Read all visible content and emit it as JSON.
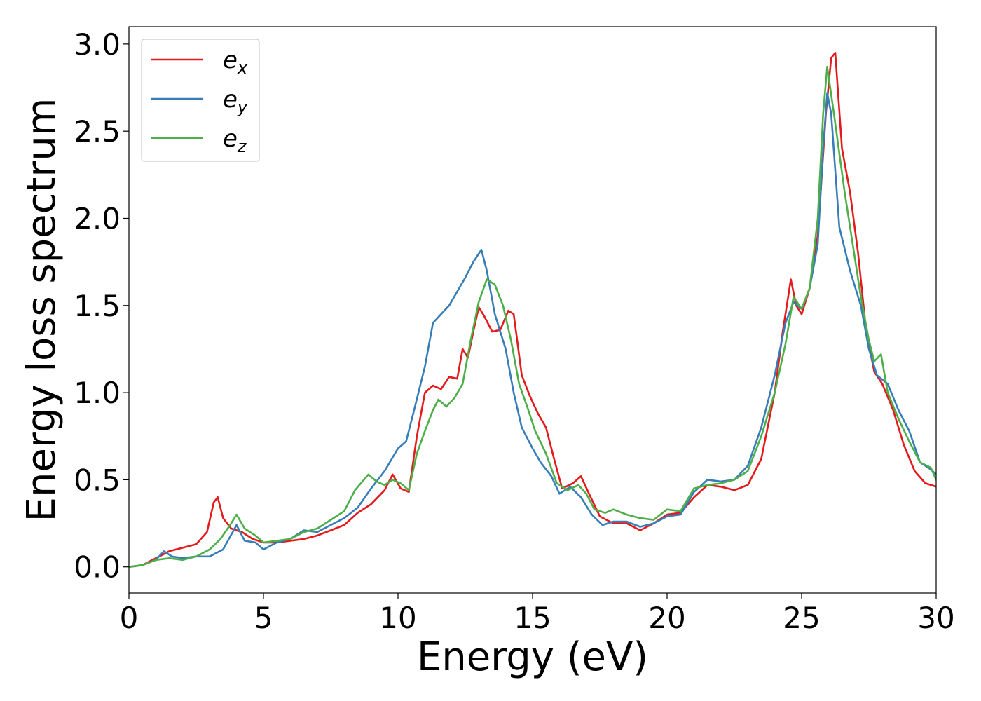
{
  "chart_data": {
    "type": "line",
    "title": "",
    "xlabel": "Energy (eV)",
    "ylabel": "Energy loss spectrum",
    "xlim": [
      0,
      30
    ],
    "ylim": [
      -0.15,
      3.1
    ],
    "xticks": [
      0,
      5,
      10,
      15,
      20,
      25,
      30
    ],
    "yticks": [
      0.0,
      0.5,
      1.0,
      1.5,
      2.0,
      2.5,
      3.0
    ],
    "xtick_labels": [
      "0",
      "5",
      "10",
      "15",
      "20",
      "25",
      "30"
    ],
    "ytick_labels": [
      "0.0",
      "0.5",
      "1.0",
      "1.5",
      "2.0",
      "2.5",
      "3.0"
    ],
    "grid": false,
    "legend_position": "upper-left",
    "series": [
      {
        "name": "e_x",
        "legend_base": "e",
        "legend_sub": "x",
        "color": "#e41a1c",
        "points": [
          [
            0,
            0
          ],
          [
            0.5,
            0.01
          ],
          [
            1.0,
            0.05
          ],
          [
            1.5,
            0.09
          ],
          [
            2.0,
            0.11
          ],
          [
            2.5,
            0.13
          ],
          [
            2.9,
            0.2
          ],
          [
            3.15,
            0.37
          ],
          [
            3.3,
            0.4
          ],
          [
            3.5,
            0.28
          ],
          [
            3.8,
            0.22
          ],
          [
            4.2,
            0.2
          ],
          [
            4.6,
            0.16
          ],
          [
            5.0,
            0.14
          ],
          [
            5.5,
            0.14
          ],
          [
            6.0,
            0.15
          ],
          [
            6.5,
            0.16
          ],
          [
            7.0,
            0.18
          ],
          [
            7.5,
            0.21
          ],
          [
            8.0,
            0.24
          ],
          [
            8.5,
            0.31
          ],
          [
            9.0,
            0.36
          ],
          [
            9.5,
            0.44
          ],
          [
            9.8,
            0.53
          ],
          [
            10.1,
            0.45
          ],
          [
            10.4,
            0.43
          ],
          [
            10.7,
            0.75
          ],
          [
            11.0,
            1.0
          ],
          [
            11.3,
            1.04
          ],
          [
            11.6,
            1.02
          ],
          [
            11.9,
            1.09
          ],
          [
            12.2,
            1.08
          ],
          [
            12.4,
            1.25
          ],
          [
            12.6,
            1.2
          ],
          [
            12.8,
            1.35
          ],
          [
            13.0,
            1.49
          ],
          [
            13.2,
            1.44
          ],
          [
            13.5,
            1.35
          ],
          [
            13.8,
            1.36
          ],
          [
            14.1,
            1.47
          ],
          [
            14.3,
            1.45
          ],
          [
            14.6,
            1.1
          ],
          [
            14.9,
            0.98
          ],
          [
            15.2,
            0.88
          ],
          [
            15.5,
            0.8
          ],
          [
            15.8,
            0.62
          ],
          [
            16.1,
            0.45
          ],
          [
            16.5,
            0.48
          ],
          [
            16.8,
            0.52
          ],
          [
            17.1,
            0.42
          ],
          [
            17.5,
            0.29
          ],
          [
            18.0,
            0.25
          ],
          [
            18.5,
            0.25
          ],
          [
            19.0,
            0.21
          ],
          [
            19.5,
            0.25
          ],
          [
            20.0,
            0.3
          ],
          [
            20.5,
            0.31
          ],
          [
            21.0,
            0.4
          ],
          [
            21.5,
            0.47
          ],
          [
            22.0,
            0.46
          ],
          [
            22.5,
            0.44
          ],
          [
            23.0,
            0.47
          ],
          [
            23.5,
            0.62
          ],
          [
            24.0,
            1.0
          ],
          [
            24.3,
            1.35
          ],
          [
            24.6,
            1.65
          ],
          [
            24.8,
            1.5
          ],
          [
            25.0,
            1.45
          ],
          [
            25.3,
            1.6
          ],
          [
            25.6,
            1.9
          ],
          [
            25.9,
            2.6
          ],
          [
            26.1,
            2.92
          ],
          [
            26.25,
            2.95
          ],
          [
            26.5,
            2.4
          ],
          [
            26.8,
            2.15
          ],
          [
            27.1,
            1.8
          ],
          [
            27.4,
            1.35
          ],
          [
            27.7,
            1.12
          ],
          [
            28.0,
            1.05
          ],
          [
            28.4,
            0.9
          ],
          [
            28.8,
            0.7
          ],
          [
            29.2,
            0.55
          ],
          [
            29.6,
            0.48
          ],
          [
            30.0,
            0.46
          ]
        ]
      },
      {
        "name": "e_y",
        "legend_base": "e",
        "legend_sub": "y",
        "color": "#377eb8",
        "points": [
          [
            0,
            0
          ],
          [
            0.5,
            0.01
          ],
          [
            1.0,
            0.04
          ],
          [
            1.3,
            0.09
          ],
          [
            1.6,
            0.06
          ],
          [
            2.0,
            0.05
          ],
          [
            2.5,
            0.06
          ],
          [
            3.0,
            0.06
          ],
          [
            3.5,
            0.1
          ],
          [
            4.0,
            0.24
          ],
          [
            4.3,
            0.15
          ],
          [
            4.7,
            0.14
          ],
          [
            5.0,
            0.1
          ],
          [
            5.5,
            0.14
          ],
          [
            6.0,
            0.16
          ],
          [
            6.5,
            0.21
          ],
          [
            7.0,
            0.2
          ],
          [
            7.5,
            0.24
          ],
          [
            8.0,
            0.28
          ],
          [
            8.5,
            0.34
          ],
          [
            9.0,
            0.45
          ],
          [
            9.5,
            0.55
          ],
          [
            10.0,
            0.68
          ],
          [
            10.3,
            0.72
          ],
          [
            10.6,
            0.9
          ],
          [
            11.0,
            1.15
          ],
          [
            11.3,
            1.4
          ],
          [
            11.6,
            1.45
          ],
          [
            11.9,
            1.5
          ],
          [
            12.2,
            1.58
          ],
          [
            12.5,
            1.66
          ],
          [
            12.8,
            1.75
          ],
          [
            13.1,
            1.82
          ],
          [
            13.3,
            1.7
          ],
          [
            13.6,
            1.45
          ],
          [
            14.0,
            1.25
          ],
          [
            14.3,
            1.0
          ],
          [
            14.6,
            0.8
          ],
          [
            15.0,
            0.68
          ],
          [
            15.3,
            0.6
          ],
          [
            15.7,
            0.52
          ],
          [
            16.0,
            0.42
          ],
          [
            16.4,
            0.46
          ],
          [
            16.8,
            0.4
          ],
          [
            17.2,
            0.3
          ],
          [
            17.6,
            0.24
          ],
          [
            18.0,
            0.26
          ],
          [
            18.5,
            0.26
          ],
          [
            19.0,
            0.23
          ],
          [
            19.5,
            0.25
          ],
          [
            20.0,
            0.29
          ],
          [
            20.5,
            0.3
          ],
          [
            21.0,
            0.43
          ],
          [
            21.5,
            0.5
          ],
          [
            22.0,
            0.49
          ],
          [
            22.5,
            0.5
          ],
          [
            23.0,
            0.58
          ],
          [
            23.5,
            0.8
          ],
          [
            24.0,
            1.1
          ],
          [
            24.4,
            1.4
          ],
          [
            24.7,
            1.52
          ],
          [
            25.0,
            1.48
          ],
          [
            25.3,
            1.6
          ],
          [
            25.6,
            1.85
          ],
          [
            25.8,
            2.4
          ],
          [
            25.95,
            2.72
          ],
          [
            26.1,
            2.6
          ],
          [
            26.4,
            1.95
          ],
          [
            26.8,
            1.7
          ],
          [
            27.2,
            1.5
          ],
          [
            27.5,
            1.25
          ],
          [
            27.8,
            1.1
          ],
          [
            28.2,
            1.05
          ],
          [
            28.6,
            0.9
          ],
          [
            29.0,
            0.78
          ],
          [
            29.4,
            0.6
          ],
          [
            29.8,
            0.56
          ],
          [
            30.0,
            0.53
          ]
        ]
      },
      {
        "name": "e_z",
        "legend_base": "e",
        "legend_sub": "z",
        "color": "#4daf4a",
        "points": [
          [
            0,
            0
          ],
          [
            0.5,
            0.01
          ],
          [
            1.0,
            0.04
          ],
          [
            1.5,
            0.05
          ],
          [
            2.0,
            0.04
          ],
          [
            2.5,
            0.06
          ],
          [
            3.0,
            0.1
          ],
          [
            3.4,
            0.16
          ],
          [
            3.8,
            0.25
          ],
          [
            4.0,
            0.3
          ],
          [
            4.3,
            0.22
          ],
          [
            4.7,
            0.18
          ],
          [
            5.0,
            0.14
          ],
          [
            5.5,
            0.15
          ],
          [
            6.0,
            0.16
          ],
          [
            6.5,
            0.2
          ],
          [
            7.0,
            0.22
          ],
          [
            7.5,
            0.27
          ],
          [
            8.0,
            0.32
          ],
          [
            8.4,
            0.44
          ],
          [
            8.9,
            0.53
          ],
          [
            9.2,
            0.49
          ],
          [
            9.5,
            0.47
          ],
          [
            9.8,
            0.5
          ],
          [
            10.1,
            0.48
          ],
          [
            10.4,
            0.44
          ],
          [
            10.7,
            0.65
          ],
          [
            11.0,
            0.78
          ],
          [
            11.3,
            0.9
          ],
          [
            11.5,
            0.96
          ],
          [
            11.8,
            0.92
          ],
          [
            12.1,
            0.97
          ],
          [
            12.4,
            1.05
          ],
          [
            12.7,
            1.3
          ],
          [
            13.0,
            1.52
          ],
          [
            13.3,
            1.65
          ],
          [
            13.6,
            1.62
          ],
          [
            13.9,
            1.5
          ],
          [
            14.2,
            1.3
          ],
          [
            14.5,
            1.05
          ],
          [
            14.8,
            0.92
          ],
          [
            15.1,
            0.78
          ],
          [
            15.5,
            0.65
          ],
          [
            15.9,
            0.48
          ],
          [
            16.3,
            0.44
          ],
          [
            16.7,
            0.47
          ],
          [
            17.0,
            0.42
          ],
          [
            17.3,
            0.33
          ],
          [
            17.7,
            0.31
          ],
          [
            18.0,
            0.33
          ],
          [
            18.5,
            0.3
          ],
          [
            19.0,
            0.28
          ],
          [
            19.5,
            0.27
          ],
          [
            20.0,
            0.33
          ],
          [
            20.5,
            0.32
          ],
          [
            21.0,
            0.45
          ],
          [
            21.5,
            0.47
          ],
          [
            22.0,
            0.48
          ],
          [
            22.5,
            0.5
          ],
          [
            23.0,
            0.55
          ],
          [
            23.5,
            0.75
          ],
          [
            24.0,
            1.0
          ],
          [
            24.4,
            1.28
          ],
          [
            24.7,
            1.55
          ],
          [
            25.0,
            1.48
          ],
          [
            25.3,
            1.6
          ],
          [
            25.6,
            2.0
          ],
          [
            25.8,
            2.6
          ],
          [
            25.95,
            2.87
          ],
          [
            26.2,
            2.6
          ],
          [
            26.6,
            2.15
          ],
          [
            26.9,
            1.85
          ],
          [
            27.2,
            1.55
          ],
          [
            27.5,
            1.3
          ],
          [
            27.7,
            1.18
          ],
          [
            27.95,
            1.22
          ],
          [
            28.2,
            1.0
          ],
          [
            28.6,
            0.85
          ],
          [
            29.0,
            0.72
          ],
          [
            29.4,
            0.6
          ],
          [
            29.8,
            0.57
          ],
          [
            30.0,
            0.5
          ]
        ]
      }
    ]
  }
}
